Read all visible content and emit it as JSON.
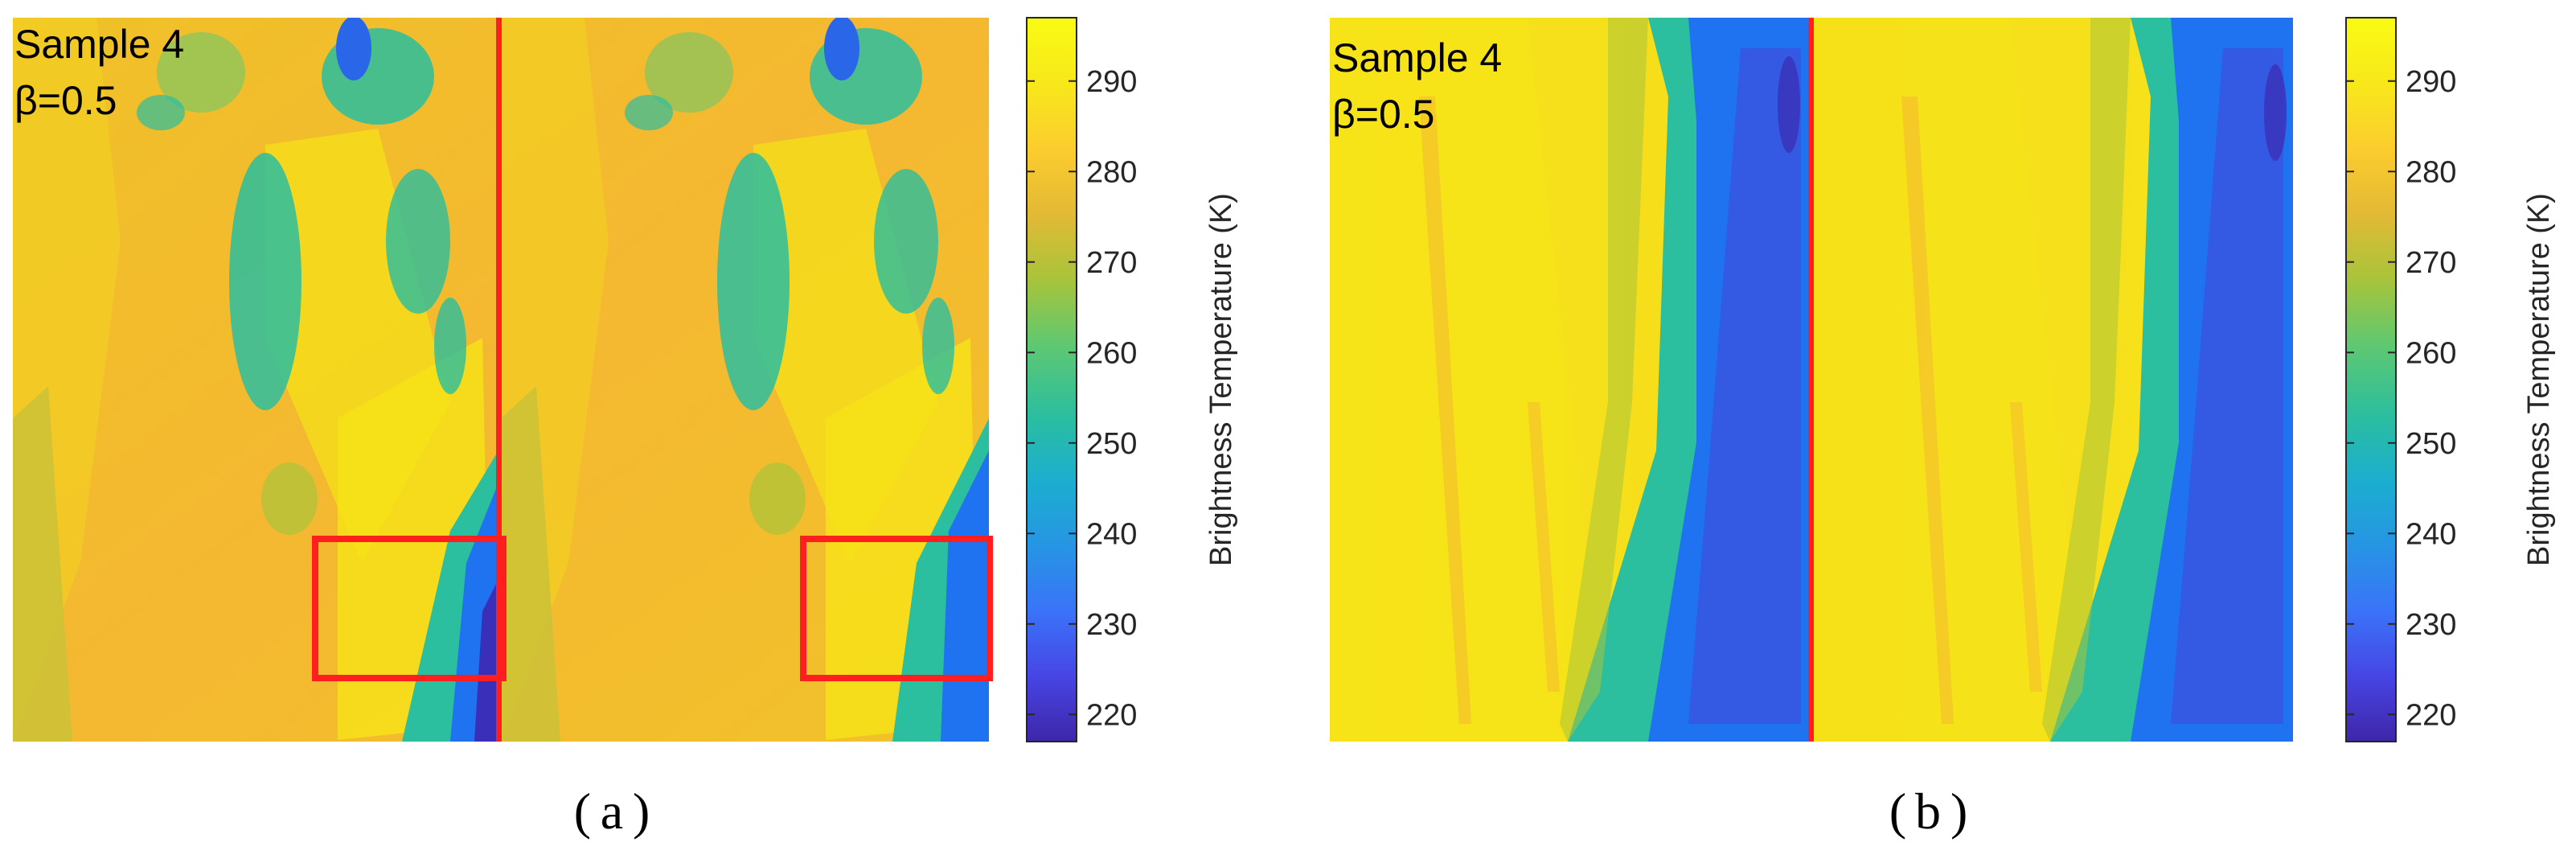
{
  "colors": {
    "yellow": "#f5e716",
    "orange": "#f4b831",
    "olive": "#c9c23a",
    "teal": "#1db8a5",
    "green": "#2ec06a",
    "blue": "#1f72f0",
    "darkblue": "#3a2fb8",
    "marker": "#ff1f1f",
    "colormap": [
      "#3e26a8",
      "#4745e5",
      "#3a73f9",
      "#2695e4",
      "#1caecf",
      "#2bbe9f",
      "#60c870",
      "#a9c43a",
      "#e4b935",
      "#fccd2e",
      "#f8e81a",
      "#f9fb14"
    ]
  },
  "chart_data": [
    {
      "type": "heatmap",
      "panel_label_text": "a",
      "annotation_lines": [
        "Sample 4",
        "β=0.5"
      ],
      "colorbar": {
        "label": "Brightness Temperature (K)",
        "ticks": [
          220,
          230,
          240,
          250,
          260,
          270,
          280,
          290
        ],
        "range": [
          217,
          297
        ]
      },
      "grid": false,
      "features": {
        "vertical_line_x_fraction": 0.5,
        "highlight_boxes": [
          {
            "x_fraction_range": [
              0.31,
              0.5
            ],
            "y_fraction_range": [
              0.72,
              0.91
            ]
          },
          {
            "x_fraction_range": [
              0.81,
              1.0
            ],
            "y_fraction_range": [
              0.72,
              0.91
            ]
          }
        ]
      }
    },
    {
      "type": "heatmap",
      "panel_label_text": "b",
      "annotation_lines": [
        "Sample 4",
        "β=0.5"
      ],
      "colorbar": {
        "label": "Brightness Temperature (K)",
        "ticks": [
          220,
          230,
          240,
          250,
          260,
          270,
          280,
          290
        ],
        "range": [
          217,
          297
        ]
      },
      "grid": false,
      "features": {
        "vertical_line_x_fraction": 0.5
      }
    }
  ]
}
